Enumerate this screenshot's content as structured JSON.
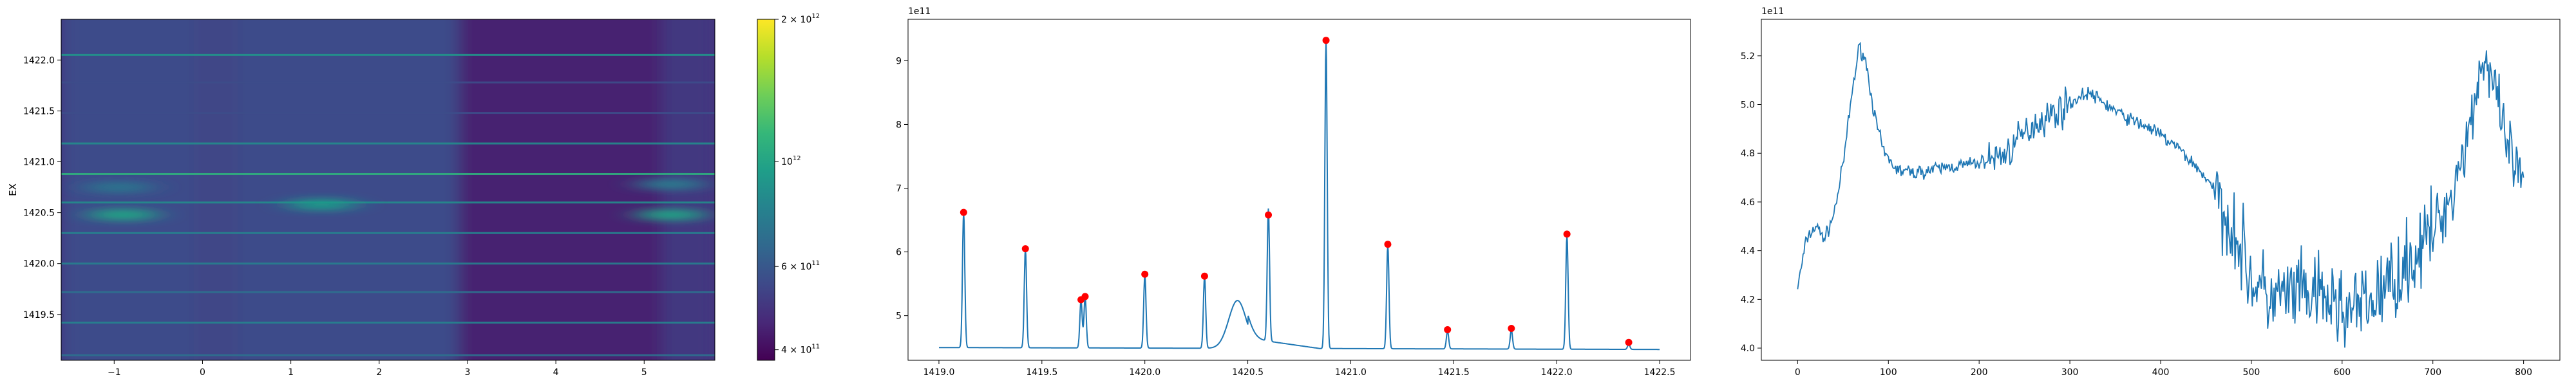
{
  "chart_data": [
    {
      "type": "heatmap",
      "title": "",
      "xlabel": "",
      "ylabel": "EX",
      "xlim": [
        -1.6,
        5.8
      ],
      "ylim": [
        1419.05,
        1422.4
      ],
      "x_ticks": [
        -1,
        0,
        1,
        2,
        3,
        4,
        5
      ],
      "x_tick_labels": [
        "−1",
        "0",
        "1",
        "2",
        "3",
        "4",
        "5"
      ],
      "y_ticks": [
        1419.5,
        1420.0,
        1420.5,
        1421.0,
        1421.5,
        1422.0
      ],
      "y_tick_labels": [
        "1419.5",
        "1420.0",
        "1420.5",
        "1421.0",
        "1421.5",
        "1422.0"
      ],
      "colormap": "viridis",
      "color_scale": "log",
      "colorbar": {
        "range": [
          380000000000,
          2000000000000
        ],
        "ticks": [
          400000000000,
          600000000000,
          1000000000000,
          2000000000000
        ],
        "tick_labels": [
          {
            "mantissa": "4 × ",
            "base": "10",
            "exp": "11"
          },
          {
            "mantissa": "6 × ",
            "base": "10",
            "exp": "11"
          },
          {
            "mantissa": "",
            "base": "10",
            "exp": "12"
          },
          {
            "mantissa": "2 × ",
            "base": "10",
            "exp": "12"
          }
        ]
      },
      "background_level": 480000000000,
      "bands": [
        {
          "x": [
            -1.6,
            2.9
          ],
          "value": 560000000000
        },
        {
          "x": [
            -0.1,
            0.4
          ],
          "value": 540000000000
        },
        {
          "x": [
            2.9,
            5.2
          ],
          "value": 440000000000
        },
        {
          "x": [
            5.2,
            5.8
          ],
          "value": 500000000000
        }
      ],
      "horizontal_lines": [
        {
          "y": 1419.1,
          "value": 700000000000
        },
        {
          "y": 1419.42,
          "value": 800000000000
        },
        {
          "y": 1419.72,
          "value": 700000000000
        },
        {
          "y": 1420.0,
          "value": 780000000000
        },
        {
          "y": 1420.3,
          "value": 800000000000
        },
        {
          "y": 1420.6,
          "value": 850000000000
        },
        {
          "y": 1420.88,
          "value": 1100000000000
        },
        {
          "y": 1421.18,
          "value": 850000000000
        },
        {
          "y": 1421.48,
          "value": 560000000000
        },
        {
          "y": 1421.78,
          "value": 560000000000
        },
        {
          "y": 1422.05,
          "value": 900000000000
        }
      ],
      "blobs": [
        {
          "x": -0.9,
          "y": 1420.48,
          "value": 1000000000000
        },
        {
          "x": -0.95,
          "y": 1420.75,
          "value": 720000000000
        },
        {
          "x": 1.35,
          "y": 1420.58,
          "value": 950000000000
        },
        {
          "x": 5.3,
          "y": 1420.48,
          "value": 1000000000000
        },
        {
          "x": 5.3,
          "y": 1420.78,
          "value": 760000000000
        }
      ],
      "colors": {
        "viridis": [
          "#440154",
          "#482878",
          "#3e4989",
          "#31688e",
          "#26828e",
          "#1f9e89",
          "#35b779",
          "#6ece58",
          "#b5de2b",
          "#fde725"
        ]
      }
    },
    {
      "type": "line",
      "title": "",
      "xlabel": "",
      "ylabel": "",
      "y_offset_label": "1e11",
      "xlim": [
        1418.85,
        1422.65
      ],
      "ylim": [
        4.3,
        9.65
      ],
      "x_ticks": [
        1419.0,
        1419.5,
        1420.0,
        1420.5,
        1421.0,
        1421.5,
        1422.0,
        1422.5
      ],
      "x_tick_labels": [
        "1419.0",
        "1419.5",
        "1420.0",
        "1420.5",
        "1421.0",
        "1421.5",
        "1422.0",
        "1422.5"
      ],
      "y_ticks": [
        5,
        6,
        7,
        8,
        9
      ],
      "y_tick_labels": [
        "5",
        "6",
        "7",
        "8",
        "9"
      ],
      "baseline": 4.5,
      "line_end": [
        1419.0,
        1422.5
      ],
      "peaks": [
        {
          "x": 1419.12,
          "y": 6.62
        },
        {
          "x": 1419.42,
          "y": 6.05
        },
        {
          "x": 1419.69,
          "y": 5.25
        },
        {
          "x": 1419.71,
          "y": 5.3
        },
        {
          "x": 1420.0,
          "y": 5.65
        },
        {
          "x": 1420.29,
          "y": 5.62
        },
        {
          "x": 1420.6,
          "y": 6.58
        },
        {
          "x": 1420.88,
          "y": 9.32
        },
        {
          "x": 1421.18,
          "y": 6.12
        },
        {
          "x": 1421.47,
          "y": 4.78
        },
        {
          "x": 1421.78,
          "y": 4.8
        },
        {
          "x": 1422.05,
          "y": 6.28
        },
        {
          "x": 1422.35,
          "y": 4.58
        }
      ],
      "hump": {
        "center": 1420.45,
        "height": 0.75,
        "width": 0.06,
        "shoulder": 1420.8,
        "shoulder_height": 0.18
      },
      "line_color": "#1f77b4",
      "marker_color": "#ff0000"
    },
    {
      "type": "line",
      "title": "",
      "xlabel": "",
      "ylabel": "",
      "y_offset_label": "1e11",
      "xlim": [
        -40,
        840
      ],
      "ylim": [
        3.95,
        5.35
      ],
      "x_ticks": [
        0,
        100,
        200,
        300,
        400,
        500,
        600,
        700,
        800
      ],
      "x_tick_labels": [
        "0",
        "100",
        "200",
        "300",
        "400",
        "500",
        "600",
        "700",
        "800"
      ],
      "y_ticks": [
        4.0,
        4.2,
        4.4,
        4.6,
        4.8,
        5.0,
        5.2
      ],
      "y_tick_labels": [
        "4.0",
        "4.2",
        "4.4",
        "4.6",
        "4.8",
        "5.0",
        "5.2"
      ],
      "x_range": [
        0,
        800
      ],
      "trend_points": [
        [
          0,
          4.25
        ],
        [
          10,
          4.45
        ],
        [
          20,
          4.5
        ],
        [
          30,
          4.45
        ],
        [
          40,
          4.55
        ],
        [
          50,
          4.75
        ],
        [
          60,
          5.05
        ],
        [
          68,
          5.24
        ],
        [
          75,
          5.18
        ],
        [
          85,
          4.95
        ],
        [
          95,
          4.8
        ],
        [
          110,
          4.73
        ],
        [
          130,
          4.72
        ],
        [
          160,
          4.74
        ],
        [
          200,
          4.76
        ],
        [
          230,
          4.8
        ],
        [
          260,
          4.92
        ],
        [
          290,
          4.98
        ],
        [
          320,
          5.05
        ],
        [
          340,
          5.0
        ],
        [
          360,
          4.95
        ],
        [
          390,
          4.9
        ],
        [
          420,
          4.82
        ],
        [
          450,
          4.7
        ],
        [
          480,
          4.5
        ],
        [
          500,
          4.28
        ],
        [
          520,
          4.2
        ],
        [
          550,
          4.22
        ],
        [
          580,
          4.2
        ],
        [
          610,
          4.15
        ],
        [
          630,
          4.18
        ],
        [
          660,
          4.3
        ],
        [
          690,
          4.42
        ],
        [
          720,
          4.62
        ],
        [
          740,
          4.9
        ],
        [
          755,
          5.2
        ],
        [
          765,
          5.1
        ],
        [
          780,
          4.85
        ],
        [
          800,
          4.65
        ]
      ],
      "noise": [
        {
          "from": 0,
          "to": 210,
          "amplitude": 0.02
        },
        {
          "from": 210,
          "to": 300,
          "amplitude": 0.05
        },
        {
          "from": 300,
          "to": 460,
          "amplitude": 0.02
        },
        {
          "from": 460,
          "to": 700,
          "amplitude": 0.12
        },
        {
          "from": 700,
          "to": 800,
          "amplitude": 0.09
        }
      ],
      "line_color": "#1f77b4"
    }
  ]
}
